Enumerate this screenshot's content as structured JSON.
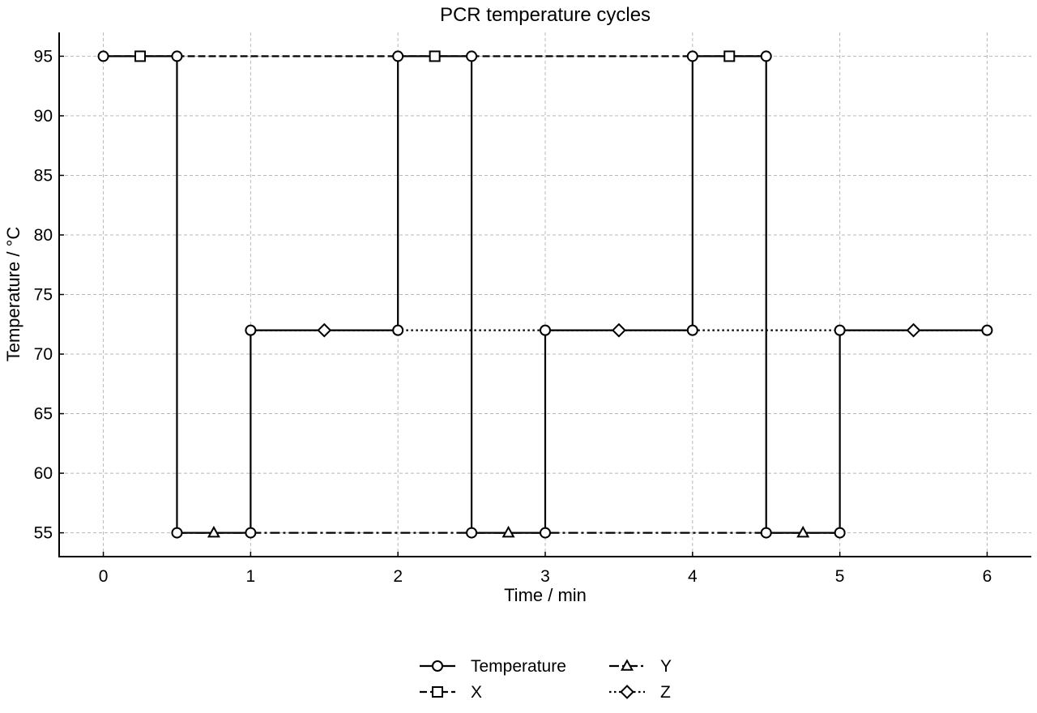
{
  "chart_data": {
    "type": "line",
    "title": "PCR temperature cycles",
    "xlabel": "Time / min",
    "ylabel": "Temperature / °C",
    "xlim": [
      -0.3,
      6.3
    ],
    "ylim": [
      53,
      97
    ],
    "x_ticks": [
      0,
      1,
      2,
      3,
      4,
      5,
      6
    ],
    "y_ticks": [
      55,
      60,
      65,
      70,
      75,
      80,
      85,
      90,
      95
    ],
    "grid": true,
    "legend_position": "bottom-center",
    "profile": {
      "name": "Temperature",
      "marker": "circle",
      "line_style": "solid",
      "color": "#000000",
      "x": [
        0,
        0.5,
        0.5,
        1,
        1,
        2,
        2,
        2.5,
        2.5,
        3,
        3,
        4,
        4,
        4.5,
        4.5,
        5,
        5,
        6
      ],
      "y": [
        95,
        95,
        55,
        55,
        72,
        72,
        95,
        95,
        55,
        55,
        72,
        72,
        95,
        95,
        55,
        55,
        72,
        72
      ]
    },
    "series": [
      {
        "name": "X",
        "marker": "square",
        "line_style": "dashed",
        "color": "#000000",
        "line_y": 95,
        "line_x": [
          0,
          4.5
        ],
        "x": [
          0.25,
          2.25,
          4.25
        ],
        "y": [
          95,
          95,
          95
        ]
      },
      {
        "name": "Y",
        "marker": "triangle",
        "line_style": "dashdot",
        "color": "#000000",
        "line_y": 55,
        "line_x": [
          0.5,
          5
        ],
        "x": [
          0.75,
          2.75,
          4.75
        ],
        "y": [
          55,
          55,
          55
        ]
      },
      {
        "name": "Z",
        "marker": "diamond",
        "line_style": "dotted",
        "color": "#000000",
        "line_y": 72,
        "line_x": [
          1,
          6
        ],
        "x": [
          1.5,
          3.5,
          5.5
        ],
        "y": [
          72,
          72,
          72
        ]
      }
    ]
  }
}
